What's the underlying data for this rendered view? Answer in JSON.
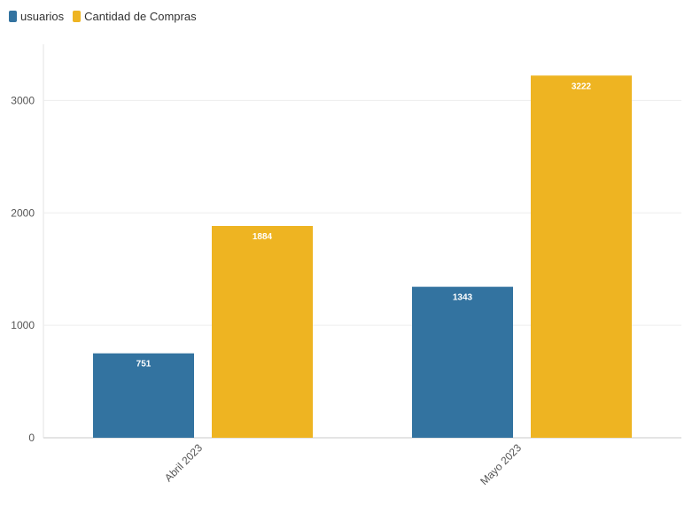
{
  "legend": {
    "items": [
      {
        "label": "usuarios",
        "color": "#3373a0"
      },
      {
        "label": "Cantidad de Compras",
        "color": "#eeb422"
      }
    ]
  },
  "chart_data": {
    "type": "bar",
    "categories": [
      "Abril 2023",
      "Mayo 2023"
    ],
    "series": [
      {
        "name": "usuarios",
        "color": "#3373a0",
        "values": [
          751,
          1343
        ]
      },
      {
        "name": "Cantidad de Compras",
        "color": "#eeb422",
        "values": [
          1884,
          3222
        ]
      }
    ],
    "y_ticks": [
      0,
      1000,
      2000,
      3000
    ],
    "ylim": [
      0,
      3500
    ],
    "grid": true,
    "legend_position": "top-left",
    "data_labels": true,
    "x_tick_rotation": "-45deg"
  }
}
